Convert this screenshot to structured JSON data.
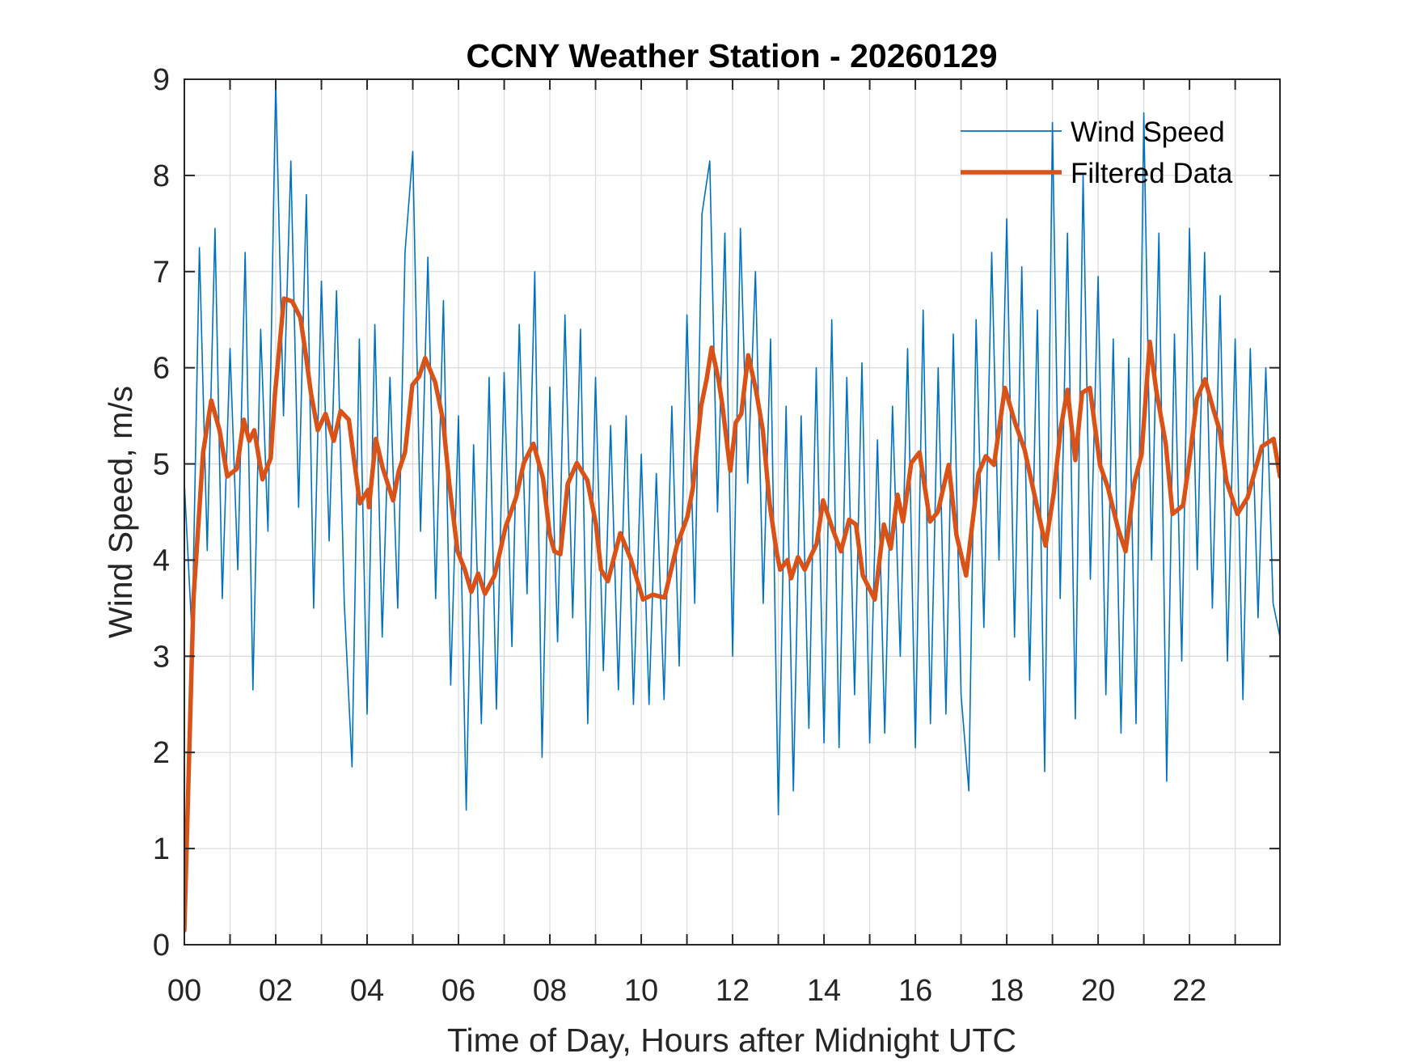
{
  "chart_data": {
    "type": "line",
    "title": "CCNY Weather Station - 20260129",
    "xlabel": "Time of Day, Hours after Midnight UTC",
    "ylabel": "Wind Speed, m/s",
    "xlim": [
      0,
      23.98
    ],
    "ylim": [
      0,
      9
    ],
    "grid": true,
    "legend_position": "top-right",
    "x_ticks": [
      0,
      2,
      4,
      6,
      8,
      10,
      12,
      14,
      16,
      18,
      20,
      22
    ],
    "x_tick_labels": [
      "00",
      "02",
      "04",
      "06",
      "08",
      "10",
      "12",
      "14",
      "16",
      "18",
      "20",
      "22"
    ],
    "x_minor_ticks_every_hours": 1,
    "y_ticks": [
      0,
      1,
      2,
      3,
      4,
      5,
      6,
      7,
      8,
      9
    ],
    "y_tick_labels": [
      "0",
      "1",
      "2",
      "3",
      "4",
      "5",
      "6",
      "7",
      "8",
      "9"
    ],
    "series": [
      {
        "name": "Wind Speed",
        "color": "#0072BD",
        "style": "thin",
        "sampling_note": "approximate 10-minute readout of the raw signal",
        "x": [
          0.0,
          0.17,
          0.33,
          0.5,
          0.67,
          0.83,
          1.0,
          1.17,
          1.33,
          1.5,
          1.67,
          1.83,
          2.0,
          2.17,
          2.33,
          2.5,
          2.67,
          2.83,
          3.0,
          3.17,
          3.33,
          3.5,
          3.67,
          3.83,
          4.0,
          4.17,
          4.33,
          4.5,
          4.67,
          4.83,
          5.0,
          5.17,
          5.33,
          5.5,
          5.67,
          5.83,
          6.0,
          6.17,
          6.33,
          6.5,
          6.67,
          6.83,
          7.0,
          7.17,
          7.33,
          7.5,
          7.67,
          7.83,
          8.0,
          8.17,
          8.33,
          8.5,
          8.67,
          8.83,
          9.0,
          9.17,
          9.33,
          9.5,
          9.67,
          9.83,
          10.0,
          10.17,
          10.33,
          10.5,
          10.67,
          10.83,
          11.0,
          11.17,
          11.33,
          11.5,
          11.67,
          11.83,
          12.0,
          12.17,
          12.33,
          12.5,
          12.67,
          12.83,
          13.0,
          13.17,
          13.33,
          13.5,
          13.67,
          13.83,
          14.0,
          14.17,
          14.33,
          14.5,
          14.67,
          14.83,
          15.0,
          15.17,
          15.33,
          15.5,
          15.67,
          15.83,
          16.0,
          16.17,
          16.33,
          16.5,
          16.67,
          16.83,
          17.0,
          17.17,
          17.33,
          17.5,
          17.67,
          17.83,
          18.0,
          18.17,
          18.33,
          18.5,
          18.67,
          18.83,
          19.0,
          19.17,
          19.33,
          19.5,
          19.67,
          19.83,
          20.0,
          20.17,
          20.33,
          20.5,
          20.67,
          20.83,
          21.0,
          21.17,
          21.33,
          21.5,
          21.67,
          21.83,
          22.0,
          22.17,
          22.33,
          22.5,
          22.67,
          22.83,
          23.0,
          23.17,
          23.33,
          23.5,
          23.67,
          23.83,
          23.98
        ],
        "values": [
          4.8,
          3.2,
          7.25,
          4.1,
          7.45,
          3.6,
          6.2,
          3.9,
          7.2,
          2.65,
          6.4,
          4.3,
          8.97,
          5.5,
          8.15,
          4.55,
          7.8,
          3.5,
          6.9,
          4.2,
          6.8,
          3.55,
          1.85,
          6.3,
          2.4,
          6.45,
          3.2,
          5.9,
          3.5,
          7.2,
          8.25,
          4.3,
          7.15,
          3.6,
          6.7,
          2.7,
          5.5,
          1.4,
          5.2,
          2.3,
          5.9,
          2.45,
          5.95,
          3.1,
          6.45,
          3.65,
          7.0,
          1.95,
          5.8,
          3.15,
          6.55,
          3.4,
          6.4,
          2.3,
          5.9,
          2.85,
          5.4,
          2.65,
          5.5,
          2.5,
          5.1,
          2.5,
          4.9,
          2.55,
          5.6,
          2.9,
          6.55,
          3.55,
          7.6,
          8.15,
          4.5,
          7.4,
          3.0,
          7.45,
          4.8,
          7.0,
          3.55,
          6.3,
          1.35,
          5.6,
          1.6,
          5.5,
          2.25,
          6.0,
          2.1,
          6.5,
          2.05,
          5.9,
          2.6,
          6.05,
          2.1,
          5.25,
          2.2,
          5.6,
          3.0,
          6.2,
          2.05,
          6.6,
          2.3,
          6.0,
          2.4,
          6.35,
          2.6,
          1.6,
          6.5,
          3.3,
          7.2,
          4.0,
          7.55,
          3.2,
          7.05,
          2.75,
          6.6,
          1.8,
          8.55,
          3.6,
          7.4,
          2.35,
          8.0,
          3.8,
          6.95,
          2.6,
          6.3,
          2.2,
          6.1,
          2.3,
          8.65,
          4.0,
          7.4,
          1.7,
          6.35,
          2.95,
          7.45,
          3.9,
          7.2,
          3.5,
          6.75,
          2.95,
          6.3,
          2.55,
          6.2,
          3.4,
          6.0,
          3.55,
          3.2
        ]
      },
      {
        "name": "Filtered Data",
        "color": "#D95319",
        "style": "thick",
        "x": [
          0.0,
          0.1,
          0.2,
          0.41,
          0.59,
          0.77,
          0.94,
          1.15,
          1.3,
          1.42,
          1.53,
          1.71,
          1.89,
          1.98,
          2.18,
          2.36,
          2.54,
          2.66,
          2.77,
          2.92,
          3.09,
          3.27,
          3.42,
          3.6,
          3.84,
          4.02,
          4.04,
          4.19,
          4.34,
          4.57,
          4.69,
          4.83,
          4.99,
          5.14,
          5.27,
          5.49,
          5.66,
          5.8,
          5.98,
          6.14,
          6.28,
          6.43,
          6.58,
          6.79,
          7.03,
          7.26,
          7.43,
          7.64,
          7.85,
          8.0,
          8.1,
          8.23,
          8.39,
          8.59,
          8.82,
          9.01,
          9.12,
          9.27,
          9.54,
          9.77,
          10.04,
          10.25,
          10.51,
          10.78,
          11.01,
          11.13,
          11.31,
          11.43,
          11.54,
          11.69,
          11.77,
          11.95,
          12.07,
          12.19,
          12.34,
          12.51,
          12.66,
          12.81,
          12.96,
          13.04,
          13.2,
          13.28,
          13.43,
          13.58,
          13.72,
          13.84,
          13.98,
          14.19,
          14.37,
          14.55,
          14.7,
          14.85,
          15.11,
          15.31,
          15.46,
          15.61,
          15.73,
          15.91,
          16.09,
          16.32,
          16.49,
          16.73,
          16.9,
          17.11,
          17.38,
          17.54,
          17.72,
          17.96,
          18.18,
          18.39,
          18.62,
          18.85,
          19.03,
          19.18,
          19.33,
          19.5,
          19.65,
          19.82,
          20.04,
          20.21,
          20.44,
          20.6,
          20.8,
          20.95,
          21.13,
          21.27,
          21.48,
          21.63,
          21.86,
          22.03,
          22.16,
          22.34,
          22.52,
          22.66,
          22.81,
          23.05,
          23.27,
          23.58,
          23.84,
          23.98
        ],
        "values": [
          0.15,
          1.9,
          3.6,
          5.12,
          5.66,
          5.35,
          4.87,
          4.95,
          5.46,
          5.24,
          5.35,
          4.84,
          5.06,
          5.71,
          6.72,
          6.69,
          6.52,
          6.13,
          5.74,
          5.35,
          5.52,
          5.24,
          5.55,
          5.46,
          4.59,
          4.73,
          4.55,
          5.26,
          4.96,
          4.62,
          4.92,
          5.12,
          5.82,
          5.91,
          6.1,
          5.85,
          5.46,
          4.79,
          4.09,
          3.9,
          3.67,
          3.86,
          3.65,
          3.84,
          4.34,
          4.65,
          5.01,
          5.21,
          4.85,
          4.26,
          4.09,
          4.06,
          4.79,
          5.01,
          4.83,
          4.37,
          3.9,
          3.78,
          4.28,
          4.01,
          3.59,
          3.64,
          3.61,
          4.15,
          4.45,
          4.75,
          5.6,
          5.88,
          6.21,
          5.88,
          5.63,
          4.93,
          5.43,
          5.52,
          6.13,
          5.77,
          5.35,
          4.59,
          4.09,
          3.9,
          4.0,
          3.81,
          4.03,
          3.9,
          4.05,
          4.17,
          4.62,
          4.32,
          4.09,
          4.42,
          4.37,
          3.84,
          3.59,
          4.37,
          4.12,
          4.68,
          4.4,
          5.01,
          5.12,
          4.4,
          4.5,
          4.99,
          4.26,
          3.84,
          4.9,
          5.08,
          4.99,
          5.79,
          5.43,
          5.15,
          4.65,
          4.15,
          4.7,
          5.37,
          5.77,
          5.04,
          5.74,
          5.79,
          4.99,
          4.76,
          4.32,
          4.09,
          4.82,
          5.1,
          6.27,
          5.77,
          5.21,
          4.48,
          4.57,
          5.15,
          5.68,
          5.88,
          5.57,
          5.35,
          4.82,
          4.48,
          4.65,
          5.18,
          5.26,
          4.87
        ]
      }
    ]
  }
}
